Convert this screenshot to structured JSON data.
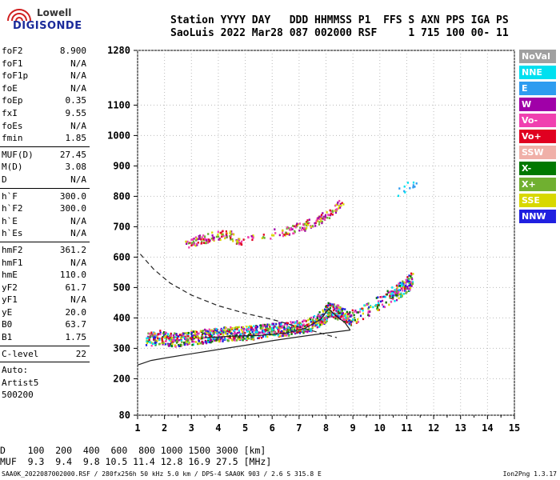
{
  "brand": {
    "line1": "Lowell",
    "line2": "DIGISONDE"
  },
  "header": {
    "row1": [
      {
        "h": "Station",
        "v": "SaoLuis"
      },
      {
        "h": "YYYY",
        "v": "2022"
      },
      {
        "h": "DAY",
        "v": "Mar28"
      },
      {
        "h": "DDD",
        "v": "087"
      },
      {
        "h": "HHMMSS",
        "v": "002000"
      },
      {
        "h": "P1",
        "v": "RSF"
      },
      {
        "h": "FFS",
        "v": ""
      },
      {
        "h": "S",
        "v": "1"
      },
      {
        "h": "AXN",
        "v": "715"
      },
      {
        "h": "PPS",
        "v": "100"
      },
      {
        "h": "IGA",
        "v": "00-"
      },
      {
        "h": "PS",
        "v": "11"
      }
    ]
  },
  "params": {
    "group1": [
      {
        "k": "foF2",
        "v": "8.900"
      },
      {
        "k": "foF1",
        "v": "N/A"
      },
      {
        "k": "foF1p",
        "v": "N/A"
      },
      {
        "k": "foE",
        "v": "N/A"
      },
      {
        "k": "foEp",
        "v": "0.35"
      },
      {
        "k": "fxI",
        "v": "9.55"
      },
      {
        "k": "foEs",
        "v": "N/A"
      },
      {
        "k": "fmin",
        "v": "1.85"
      }
    ],
    "group2": [
      {
        "k": "MUF(D)",
        "v": "27.45"
      },
      {
        "k": "M(D)",
        "v": "3.08"
      },
      {
        "k": "D",
        "v": "N/A"
      }
    ],
    "group3": [
      {
        "k": "h`F",
        "v": "300.0"
      },
      {
        "k": "h`F2",
        "v": "300.0"
      },
      {
        "k": "h`E",
        "v": "N/A"
      },
      {
        "k": "h`Es",
        "v": "N/A"
      }
    ],
    "group4": [
      {
        "k": "hmF2",
        "v": "361.2"
      },
      {
        "k": "hmF1",
        "v": "N/A"
      },
      {
        "k": "hmE",
        "v": "110.0"
      },
      {
        "k": "yF2",
        "v": "61.7"
      },
      {
        "k": "yF1",
        "v": "N/A"
      },
      {
        "k": "yE",
        "v": "20.0"
      },
      {
        "k": "B0",
        "v": "63.7"
      },
      {
        "k": "B1",
        "v": "1.75"
      }
    ],
    "group5": [
      {
        "k": "C-level",
        "v": "22"
      }
    ],
    "notes": [
      "Auto:",
      "Artist5",
      "500200"
    ]
  },
  "legend": [
    {
      "label": "NoVal",
      "color": "#a0a0a0"
    },
    {
      "label": "NNE",
      "color": "#00e0f0"
    },
    {
      "label": "E",
      "color": "#2e9cf0"
    },
    {
      "label": "W",
      "color": "#a000a8"
    },
    {
      "label": "Vo-",
      "color": "#f040b0"
    },
    {
      "label": "Vo+",
      "color": "#e00020"
    },
    {
      "label": "SSW",
      "color": "#f0b0a8"
    },
    {
      "label": "X-",
      "color": "#007800"
    },
    {
      "label": "X+",
      "color": "#70b030"
    },
    {
      "label": "SSE",
      "color": "#d8d800"
    },
    {
      "label": "NNW",
      "color": "#2020e0"
    }
  ],
  "muf_table": {
    "d_label": "D",
    "d_values": [
      "100",
      "200",
      "400",
      "600",
      "800",
      "1000",
      "1500",
      "3000"
    ],
    "d_unit": "[km]",
    "muf_label": "MUF",
    "muf_values": [
      "9.3",
      "9.4",
      "9.8",
      "10.5",
      "11.4",
      "12.8",
      "16.9",
      "27.5"
    ],
    "muf_unit": "[MHz]"
  },
  "footer": {
    "left": "SAA0K_2022087002000.RSF / 280fx256h 50 kHz 5.0 km / DPS-4 SAA0K 903 / 2.6 S 315.8 E",
    "right": "Ion2Png 1.3.17"
  },
  "chart_data": {
    "type": "scatter",
    "xlim": [
      1,
      15
    ],
    "ylim": [
      80,
      1280
    ],
    "x_ticks": [
      "1",
      "2",
      "3",
      "4",
      "5",
      "6",
      "7",
      "8",
      "9",
      "10",
      "11",
      "12",
      "13",
      "14",
      "15"
    ],
    "y_ticks": [
      "80",
      "200",
      "300",
      "400",
      "500",
      "600",
      "700",
      "800",
      "900",
      "1000",
      "1100",
      "1280"
    ],
    "grid": true,
    "legend_position": "right",
    "clusters": [
      {
        "series": "ordinary-F",
        "color_mix": [
          "#2020e0",
          "#a000a8",
          "#f040b0",
          "#e00020",
          "#007800",
          "#70b030",
          "#d8d800",
          "#00e0f0"
        ],
        "points": [
          [
            1.3,
            330
          ],
          [
            1.8,
            340
          ],
          [
            2.3,
            330
          ],
          [
            2.8,
            335
          ],
          [
            3.3,
            340
          ],
          [
            3.8,
            345
          ],
          [
            4.3,
            350
          ],
          [
            4.8,
            352
          ],
          [
            5.3,
            355
          ],
          [
            5.8,
            360
          ],
          [
            6.3,
            365
          ],
          [
            6.8,
            370
          ],
          [
            7.3,
            375
          ],
          [
            7.8,
            400
          ],
          [
            8.1,
            430
          ],
          [
            8.5,
            420
          ],
          [
            8.9,
            400
          ],
          [
            10.3,
            470
          ],
          [
            10.8,
            500
          ],
          [
            11.2,
            530
          ]
        ]
      },
      {
        "series": "second-hop",
        "color_mix": [
          "#a000a8",
          "#f040b0",
          "#e00020",
          "#d8d800",
          "#70b030"
        ],
        "points": [
          [
            2.8,
            640
          ],
          [
            3.3,
            660
          ],
          [
            3.8,
            670
          ],
          [
            4.3,
            680
          ],
          [
            4.8,
            650
          ],
          [
            6.5,
            690
          ],
          [
            7.0,
            700
          ],
          [
            7.6,
            720
          ],
          [
            8.0,
            740
          ],
          [
            8.6,
            780
          ]
        ]
      },
      {
        "series": "third-hop",
        "color_mix": [
          "#00e0f0",
          "#2e9cf0"
        ],
        "points": [
          [
            10.6,
            810
          ],
          [
            11.0,
            840
          ],
          [
            11.3,
            850
          ]
        ]
      }
    ],
    "profile_curves": [
      {
        "name": "",
        "style": "dashed",
        "points": [
          [
            1.1,
            610
          ],
          [
            1.6,
            560
          ],
          [
            2.2,
            515
          ],
          [
            3.0,
            475
          ],
          [
            4.0,
            440
          ],
          [
            5.0,
            415
          ],
          [
            6.0,
            395
          ],
          [
            7.0,
            370
          ],
          [
            8.0,
            345
          ],
          [
            8.4,
            335
          ]
        ]
      },
      {
        "name": "",
        "style": "solid",
        "points": [
          [
            1.0,
            245
          ],
          [
            1.5,
            260
          ],
          [
            2.0,
            268
          ],
          [
            3.0,
            282
          ],
          [
            4.0,
            296
          ],
          [
            5.0,
            310
          ],
          [
            6.0,
            325
          ],
          [
            7.0,
            338
          ],
          [
            8.0,
            350
          ],
          [
            8.9,
            360
          ]
        ]
      },
      {
        "name": "",
        "style": "solid",
        "points": [
          [
            3.5,
            335
          ],
          [
            4.5,
            340
          ],
          [
            5.5,
            342
          ],
          [
            6.5,
            350
          ],
          [
            7.2,
            365
          ],
          [
            7.8,
            395
          ],
          [
            8.1,
            430
          ],
          [
            8.4,
            405
          ],
          [
            8.7,
            385
          ],
          [
            8.9,
            360
          ]
        ]
      }
    ]
  }
}
